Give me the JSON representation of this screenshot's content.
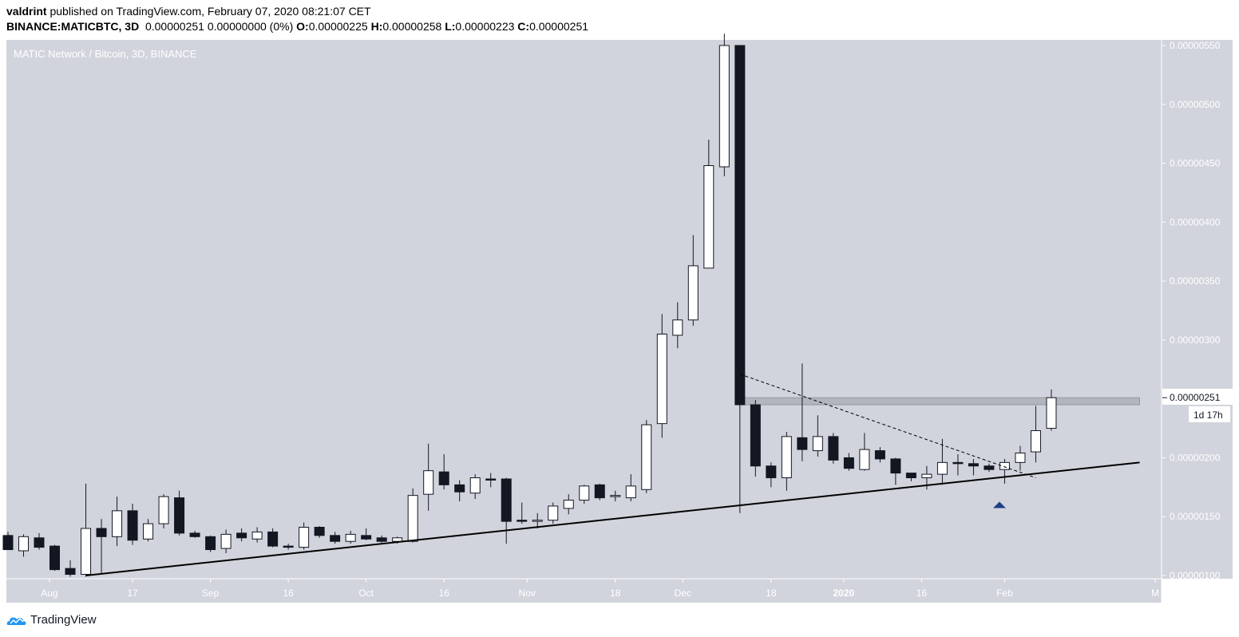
{
  "header": {
    "author": "valdrint",
    "published_text": "published on TradingView.com, February 07, 2020 08:21:07 CET",
    "symbol": "BINANCE:MATICBTC, 3D",
    "change_text": "0.00000251 0.00000000 (0%)",
    "ohlc": [
      {
        "label": "O:",
        "value": "0.00000225"
      },
      {
        "label": "H:",
        "value": "0.00000258"
      },
      {
        "label": "L:",
        "value": "0.00000223"
      },
      {
        "label": "C:",
        "value": "0.00000251"
      }
    ]
  },
  "footer": {
    "brand": "TradingView"
  },
  "colors": {
    "pane_bg": "#d1d4dc",
    "up_body": "#ffffff",
    "down_body": "#131722",
    "wick": "#131722",
    "zone": "#b2b5be",
    "arrow": "#1e3f86"
  },
  "chart_data": {
    "type": "candlestick",
    "title": "MATIC Network / Bitcoin, 3D, BINANCE",
    "ylim": [
      1e-06,
      5.5e-06
    ],
    "y_ticks": [
      "0.00000100",
      "0.00000150",
      "0.00000200",
      "0.00000250",
      "0.00000300",
      "0.00000350",
      "0.00000400",
      "0.00000450",
      "0.00000500",
      "0.00000550"
    ],
    "y_tick_values": [
      1e-06,
      1.5e-06,
      2e-06,
      2.5e-06,
      3e-06,
      3.5e-06,
      4e-06,
      4.5e-06,
      5e-06,
      5.5e-06
    ],
    "x_range": [
      "2019-07-24",
      "2020-03-01"
    ],
    "x_ticks": [
      {
        "label": "Aug",
        "date": "2019-08-01"
      },
      {
        "label": "17",
        "date": "2019-08-17"
      },
      {
        "label": "Sep",
        "date": "2019-09-01"
      },
      {
        "label": "16",
        "date": "2019-09-16"
      },
      {
        "label": "Oct",
        "date": "2019-10-01"
      },
      {
        "label": "16",
        "date": "2019-10-16"
      },
      {
        "label": "Nov",
        "date": "2019-11-01"
      },
      {
        "label": "18",
        "date": "2019-11-18"
      },
      {
        "label": "Dec",
        "date": "2019-12-01"
      },
      {
        "label": "18",
        "date": "2019-12-18"
      },
      {
        "label": "2020",
        "date": "2020-01-01",
        "bold": true
      },
      {
        "label": "16",
        "date": "2020-01-16"
      },
      {
        "label": "Feb",
        "date": "2020-02-01"
      },
      {
        "label": "M",
        "date": "2020-03-01"
      }
    ],
    "candles": [
      {
        "d": "2019-07-24",
        "o": 1.34e-06,
        "h": 1.37e-06,
        "l": 1.22e-06,
        "c": 1.22e-06
      },
      {
        "d": "2019-07-27",
        "o": 1.21e-06,
        "h": 1.35e-06,
        "l": 1.16e-06,
        "c": 1.33e-06
      },
      {
        "d": "2019-07-30",
        "o": 1.32e-06,
        "h": 1.36e-06,
        "l": 1.22e-06,
        "c": 1.24e-06
      },
      {
        "d": "2019-08-02",
        "o": 1.25e-06,
        "h": 1.26e-06,
        "l": 1.04e-06,
        "c": 1.05e-06
      },
      {
        "d": "2019-08-05",
        "o": 1.06e-06,
        "h": 1.13e-06,
        "l": 9.9e-07,
        "c": 1.01e-06
      },
      {
        "d": "2019-08-08",
        "o": 1.01e-06,
        "h": 1.78e-06,
        "l": 9.9e-07,
        "c": 1.4e-06
      },
      {
        "d": "2019-08-11",
        "o": 1.4e-06,
        "h": 1.48e-06,
        "l": 1.01e-06,
        "c": 1.33e-06
      },
      {
        "d": "2019-08-14",
        "o": 1.33e-06,
        "h": 1.67e-06,
        "l": 1.25e-06,
        "c": 1.55e-06
      },
      {
        "d": "2019-08-17",
        "o": 1.55e-06,
        "h": 1.61e-06,
        "l": 1.26e-06,
        "c": 1.3e-06
      },
      {
        "d": "2019-08-20",
        "o": 1.31e-06,
        "h": 1.48e-06,
        "l": 1.29e-06,
        "c": 1.44e-06
      },
      {
        "d": "2019-08-23",
        "o": 1.44e-06,
        "h": 1.69e-06,
        "l": 1.4e-06,
        "c": 1.67e-06
      },
      {
        "d": "2019-08-26",
        "o": 1.66e-06,
        "h": 1.72e-06,
        "l": 1.34e-06,
        "c": 1.36e-06
      },
      {
        "d": "2019-08-29",
        "o": 1.36e-06,
        "h": 1.38e-06,
        "l": 1.32e-06,
        "c": 1.33e-06
      },
      {
        "d": "2019-09-01",
        "o": 1.33e-06,
        "h": 1.34e-06,
        "l": 1.2e-06,
        "c": 1.22e-06
      },
      {
        "d": "2019-09-04",
        "o": 1.23e-06,
        "h": 1.39e-06,
        "l": 1.19e-06,
        "c": 1.35e-06
      },
      {
        "d": "2019-09-07",
        "o": 1.36e-06,
        "h": 1.4e-06,
        "l": 1.29e-06,
        "c": 1.32e-06
      },
      {
        "d": "2019-09-10",
        "o": 1.31e-06,
        "h": 1.41e-06,
        "l": 1.28e-06,
        "c": 1.37e-06
      },
      {
        "d": "2019-09-13",
        "o": 1.37e-06,
        "h": 1.4e-06,
        "l": 1.24e-06,
        "c": 1.25e-06
      },
      {
        "d": "2019-09-16",
        "o": 1.25e-06,
        "h": 1.27e-06,
        "l": 1.22e-06,
        "c": 1.24e-06
      },
      {
        "d": "2019-09-19",
        "o": 1.24e-06,
        "h": 1.45e-06,
        "l": 1.22e-06,
        "c": 1.41e-06
      },
      {
        "d": "2019-09-22",
        "o": 1.41e-06,
        "h": 1.42e-06,
        "l": 1.32e-06,
        "c": 1.34e-06
      },
      {
        "d": "2019-09-25",
        "o": 1.34e-06,
        "h": 1.37e-06,
        "l": 1.27e-06,
        "c": 1.29e-06
      },
      {
        "d": "2019-09-28",
        "o": 1.29e-06,
        "h": 1.38e-06,
        "l": 1.27e-06,
        "c": 1.35e-06
      },
      {
        "d": "2019-10-01",
        "o": 1.34e-06,
        "h": 1.4e-06,
        "l": 1.3e-06,
        "c": 1.31e-06
      },
      {
        "d": "2019-10-04",
        "o": 1.32e-06,
        "h": 1.34e-06,
        "l": 1.28e-06,
        "c": 1.29e-06
      },
      {
        "d": "2019-10-07",
        "o": 1.29e-06,
        "h": 1.33e-06,
        "l": 1.27e-06,
        "c": 1.32e-06
      },
      {
        "d": "2019-10-10",
        "o": 1.29e-06,
        "h": 1.74e-06,
        "l": 1.28e-06,
        "c": 1.68e-06
      },
      {
        "d": "2019-10-13",
        "o": 1.69e-06,
        "h": 2.12e-06,
        "l": 1.55e-06,
        "c": 1.89e-06
      },
      {
        "d": "2019-10-16",
        "o": 1.88e-06,
        "h": 2.03e-06,
        "l": 1.73e-06,
        "c": 1.77e-06
      },
      {
        "d": "2019-10-19",
        "o": 1.77e-06,
        "h": 1.81e-06,
        "l": 1.63e-06,
        "c": 1.71e-06
      },
      {
        "d": "2019-10-22",
        "o": 1.7e-06,
        "h": 1.86e-06,
        "l": 1.65e-06,
        "c": 1.83e-06
      },
      {
        "d": "2019-10-25",
        "o": 1.82e-06,
        "h": 1.87e-06,
        "l": 1.75e-06,
        "c": 1.81e-06
      },
      {
        "d": "2019-10-28",
        "o": 1.82e-06,
        "h": 1.83e-06,
        "l": 1.27e-06,
        "c": 1.46e-06
      },
      {
        "d": "2019-10-31",
        "o": 1.47e-06,
        "h": 1.62e-06,
        "l": 1.44e-06,
        "c": 1.46e-06
      },
      {
        "d": "2019-11-03",
        "o": 1.46e-06,
        "h": 1.53e-06,
        "l": 1.4e-06,
        "c": 1.47e-06
      },
      {
        "d": "2019-11-06",
        "o": 1.47e-06,
        "h": 1.62e-06,
        "l": 1.44e-06,
        "c": 1.59e-06
      },
      {
        "d": "2019-11-09",
        "o": 1.57e-06,
        "h": 1.69e-06,
        "l": 1.52e-06,
        "c": 1.64e-06
      },
      {
        "d": "2019-11-12",
        "o": 1.64e-06,
        "h": 1.77e-06,
        "l": 1.61e-06,
        "c": 1.76e-06
      },
      {
        "d": "2019-11-15",
        "o": 1.77e-06,
        "h": 1.78e-06,
        "l": 1.64e-06,
        "c": 1.66e-06
      },
      {
        "d": "2019-11-18",
        "o": 1.67e-06,
        "h": 1.72e-06,
        "l": 1.63e-06,
        "c": 1.68e-06
      },
      {
        "d": "2019-11-21",
        "o": 1.66e-06,
        "h": 1.86e-06,
        "l": 1.63e-06,
        "c": 1.76e-06
      },
      {
        "d": "2019-11-24",
        "o": 1.73e-06,
        "h": 2.32e-06,
        "l": 1.7e-06,
        "c": 2.28e-06
      },
      {
        "d": "2019-11-27",
        "o": 2.29e-06,
        "h": 3.22e-06,
        "l": 2.17e-06,
        "c": 3.05e-06
      },
      {
        "d": "2019-11-30",
        "o": 3.04e-06,
        "h": 3.32e-06,
        "l": 2.93e-06,
        "c": 3.17e-06
      },
      {
        "d": "2019-12-03",
        "o": 3.17e-06,
        "h": 3.89e-06,
        "l": 3.12e-06,
        "c": 3.63e-06
      },
      {
        "d": "2019-12-06",
        "o": 3.61e-06,
        "h": 4.7e-06,
        "l": 3.61e-06,
        "c": 4.48e-06
      },
      {
        "d": "2019-12-09",
        "o": 4.47e-06,
        "h": 5.6e-06,
        "l": 4.39e-06,
        "c": 5.5e-06
      },
      {
        "d": "2019-12-12",
        "o": 5.5e-06,
        "h": 5.5e-06,
        "l": 1.53e-06,
        "c": 2.45e-06
      },
      {
        "d": "2019-12-15",
        "o": 2.45e-06,
        "h": 2.49e-06,
        "l": 1.84e-06,
        "c": 1.93e-06
      },
      {
        "d": "2019-12-18",
        "o": 1.93e-06,
        "h": 1.96e-06,
        "l": 1.75e-06,
        "c": 1.83e-06
      },
      {
        "d": "2019-12-21",
        "o": 1.83e-06,
        "h": 2.22e-06,
        "l": 1.72e-06,
        "c": 2.18e-06
      },
      {
        "d": "2019-12-24",
        "o": 2.17e-06,
        "h": 2.8e-06,
        "l": 1.97e-06,
        "c": 2.07e-06
      },
      {
        "d": "2019-12-27",
        "o": 2.06e-06,
        "h": 2.36e-06,
        "l": 2.01e-06,
        "c": 2.18e-06
      },
      {
        "d": "2019-12-30",
        "o": 2.18e-06,
        "h": 2.21e-06,
        "l": 1.95e-06,
        "c": 1.98e-06
      },
      {
        "d": "2020-01-02",
        "o": 2e-06,
        "h": 2.04e-06,
        "l": 1.89e-06,
        "c": 1.91e-06
      },
      {
        "d": "2020-01-05",
        "o": 1.9e-06,
        "h": 2.21e-06,
        "l": 1.89e-06,
        "c": 2.07e-06
      },
      {
        "d": "2020-01-08",
        "o": 2.06e-06,
        "h": 2.09e-06,
        "l": 1.96e-06,
        "c": 1.99e-06
      },
      {
        "d": "2020-01-11",
        "o": 1.99e-06,
        "h": 2e-06,
        "l": 1.77e-06,
        "c": 1.87e-06
      },
      {
        "d": "2020-01-14",
        "o": 1.87e-06,
        "h": 1.87e-06,
        "l": 1.8e-06,
        "c": 1.83e-06
      },
      {
        "d": "2020-01-17",
        "o": 1.83e-06,
        "h": 1.93e-06,
        "l": 1.73e-06,
        "c": 1.86e-06
      },
      {
        "d": "2020-01-20",
        "o": 1.86e-06,
        "h": 2.16e-06,
        "l": 1.77e-06,
        "c": 1.96e-06
      },
      {
        "d": "2020-01-23",
        "o": 1.96e-06,
        "h": 2.03e-06,
        "l": 1.85e-06,
        "c": 1.95e-06
      },
      {
        "d": "2020-01-26",
        "o": 1.95e-06,
        "h": 1.99e-06,
        "l": 1.85e-06,
        "c": 1.93e-06
      },
      {
        "d": "2020-01-29",
        "o": 1.93e-06,
        "h": 1.95e-06,
        "l": 1.88e-06,
        "c": 1.9e-06
      },
      {
        "d": "2020-02-01",
        "o": 1.9e-06,
        "h": 1.99e-06,
        "l": 1.78e-06,
        "c": 1.96e-06
      },
      {
        "d": "2020-02-04",
        "o": 1.96e-06,
        "h": 2.1e-06,
        "l": 1.89e-06,
        "c": 2.04e-06
      },
      {
        "d": "2020-02-07",
        "o": 2.05e-06,
        "h": 2.44e-06,
        "l": 1.96e-06,
        "c": 2.23e-06
      },
      {
        "d": "2020-02-10",
        "o": 2.25e-06,
        "h": 2.58e-06,
        "l": 2.23e-06,
        "c": 2.51e-06
      }
    ],
    "annotations": {
      "support_line": {
        "from": {
          "d": "2019-08-08",
          "y": 1e-06
        },
        "to": {
          "d": "2020-02-27",
          "y": 1.96e-06
        }
      },
      "descending_dashed": {
        "from": {
          "d": "2019-12-12",
          "y": 2.71e-06
        },
        "to": {
          "d": "2020-02-07",
          "y": 1.83e-06
        }
      },
      "resistance_zone": {
        "from_d": "2019-12-12",
        "to_d": "2020-02-27",
        "y_low": 2.45e-06,
        "y_high": 2.51e-06
      },
      "arrow_up": {
        "d": "2020-01-31",
        "y": 1.62e-06
      }
    },
    "last_price": {
      "label": "0.00000251",
      "value": 2.51e-06
    },
    "countdown": "1d 17h"
  }
}
